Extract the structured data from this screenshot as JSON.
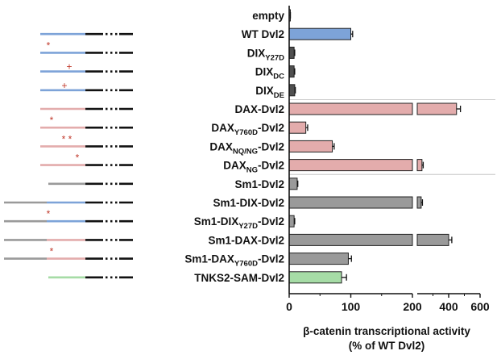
{
  "chart_data": {
    "type": "bar",
    "orientation": "horizontal",
    "categories": [
      {
        "base": "empty",
        "sub": "",
        "suffix": ""
      },
      {
        "base": "WT Dvl2",
        "sub": "",
        "suffix": ""
      },
      {
        "base": "DIX",
        "sub": "Y27D",
        "suffix": ""
      },
      {
        "base": "DIX",
        "sub": "DC",
        "suffix": ""
      },
      {
        "base": "DIX",
        "sub": "DE",
        "suffix": ""
      },
      {
        "base": "DAX",
        "sub": "",
        "suffix": "-Dvl2"
      },
      {
        "base": "DAX",
        "sub": "Y760D",
        "suffix": "-Dvl2"
      },
      {
        "base": "DAX",
        "sub": "NQ/NG",
        "suffix": "-Dvl2"
      },
      {
        "base": "DAX",
        "sub": "NG",
        "suffix": "-Dvl2"
      },
      {
        "base": "Sm1-Dvl2",
        "sub": "",
        "suffix": ""
      },
      {
        "base": "Sm1-DIX-Dvl2",
        "sub": "",
        "suffix": ""
      },
      {
        "base": "Sm1-DIX",
        "sub": "Y27D",
        "suffix": "-Dvl2"
      },
      {
        "base": "Sm1-DAX-Dvl2",
        "sub": "",
        "suffix": ""
      },
      {
        "base": "Sm1-DAX",
        "sub": "Y760D",
        "suffix": "-Dvl2"
      },
      {
        "base": "TNKS2-SAM-Dvl2",
        "sub": "",
        "suffix": ""
      }
    ],
    "values": [
      1,
      100,
      8,
      8,
      9,
      450,
      27,
      70,
      230,
      13,
      225,
      8,
      400,
      96,
      85
    ],
    "errors": [
      1,
      3,
      1,
      1,
      1,
      25,
      3,
      3,
      8,
      1,
      8,
      1,
      20,
      5,
      8
    ],
    "colors": [
      "#9a9a9a",
      "#7da3d8",
      "#505050",
      "#505050",
      "#505050",
      "#e3acac",
      "#e3acac",
      "#e3acac",
      "#e3acac",
      "#9a9a9a",
      "#9a9a9a",
      "#9a9a9a",
      "#9a9a9a",
      "#9a9a9a",
      "#a6dca6"
    ],
    "xlabel_line1": "β-catenin transcriptional activity",
    "xlabel_line2": "(% of WT Dvl2)",
    "x_axis": {
      "segment1": {
        "range": [
          0,
          200
        ],
        "ticks": [
          "0",
          "100",
          "200"
        ]
      },
      "segment2": {
        "range": [
          200,
          600
        ],
        "ticks": [
          "400",
          "600"
        ]
      }
    },
    "construct_diagrams": [
      {
        "left": "",
        "mid": "",
        "mutation": ""
      },
      {
        "left": "",
        "mid": "blue",
        "mutation": ""
      },
      {
        "left": "",
        "mid": "blue",
        "mutation": "*"
      },
      {
        "left": "",
        "mid": "blue",
        "mutation": "+"
      },
      {
        "left": "",
        "mid": "blue",
        "mutation": "+"
      },
      {
        "left": "",
        "mid": "pink",
        "mutation": ""
      },
      {
        "left": "",
        "mid": "pink",
        "mutation": "*"
      },
      {
        "left": "",
        "mid": "pink",
        "mutation": "* *"
      },
      {
        "left": "",
        "mid": "pink",
        "mutation": "*"
      },
      {
        "left": "",
        "mid": "gray",
        "mutation": ""
      },
      {
        "left": "gray",
        "mid": "blue",
        "mutation": ""
      },
      {
        "left": "gray",
        "mid": "blue",
        "mutation": "*"
      },
      {
        "left": "gray",
        "mid": "pink",
        "mutation": ""
      },
      {
        "left": "gray",
        "mid": "pink",
        "mutation": "*"
      },
      {
        "left": "",
        "mid": "green",
        "mutation": ""
      }
    ]
  }
}
